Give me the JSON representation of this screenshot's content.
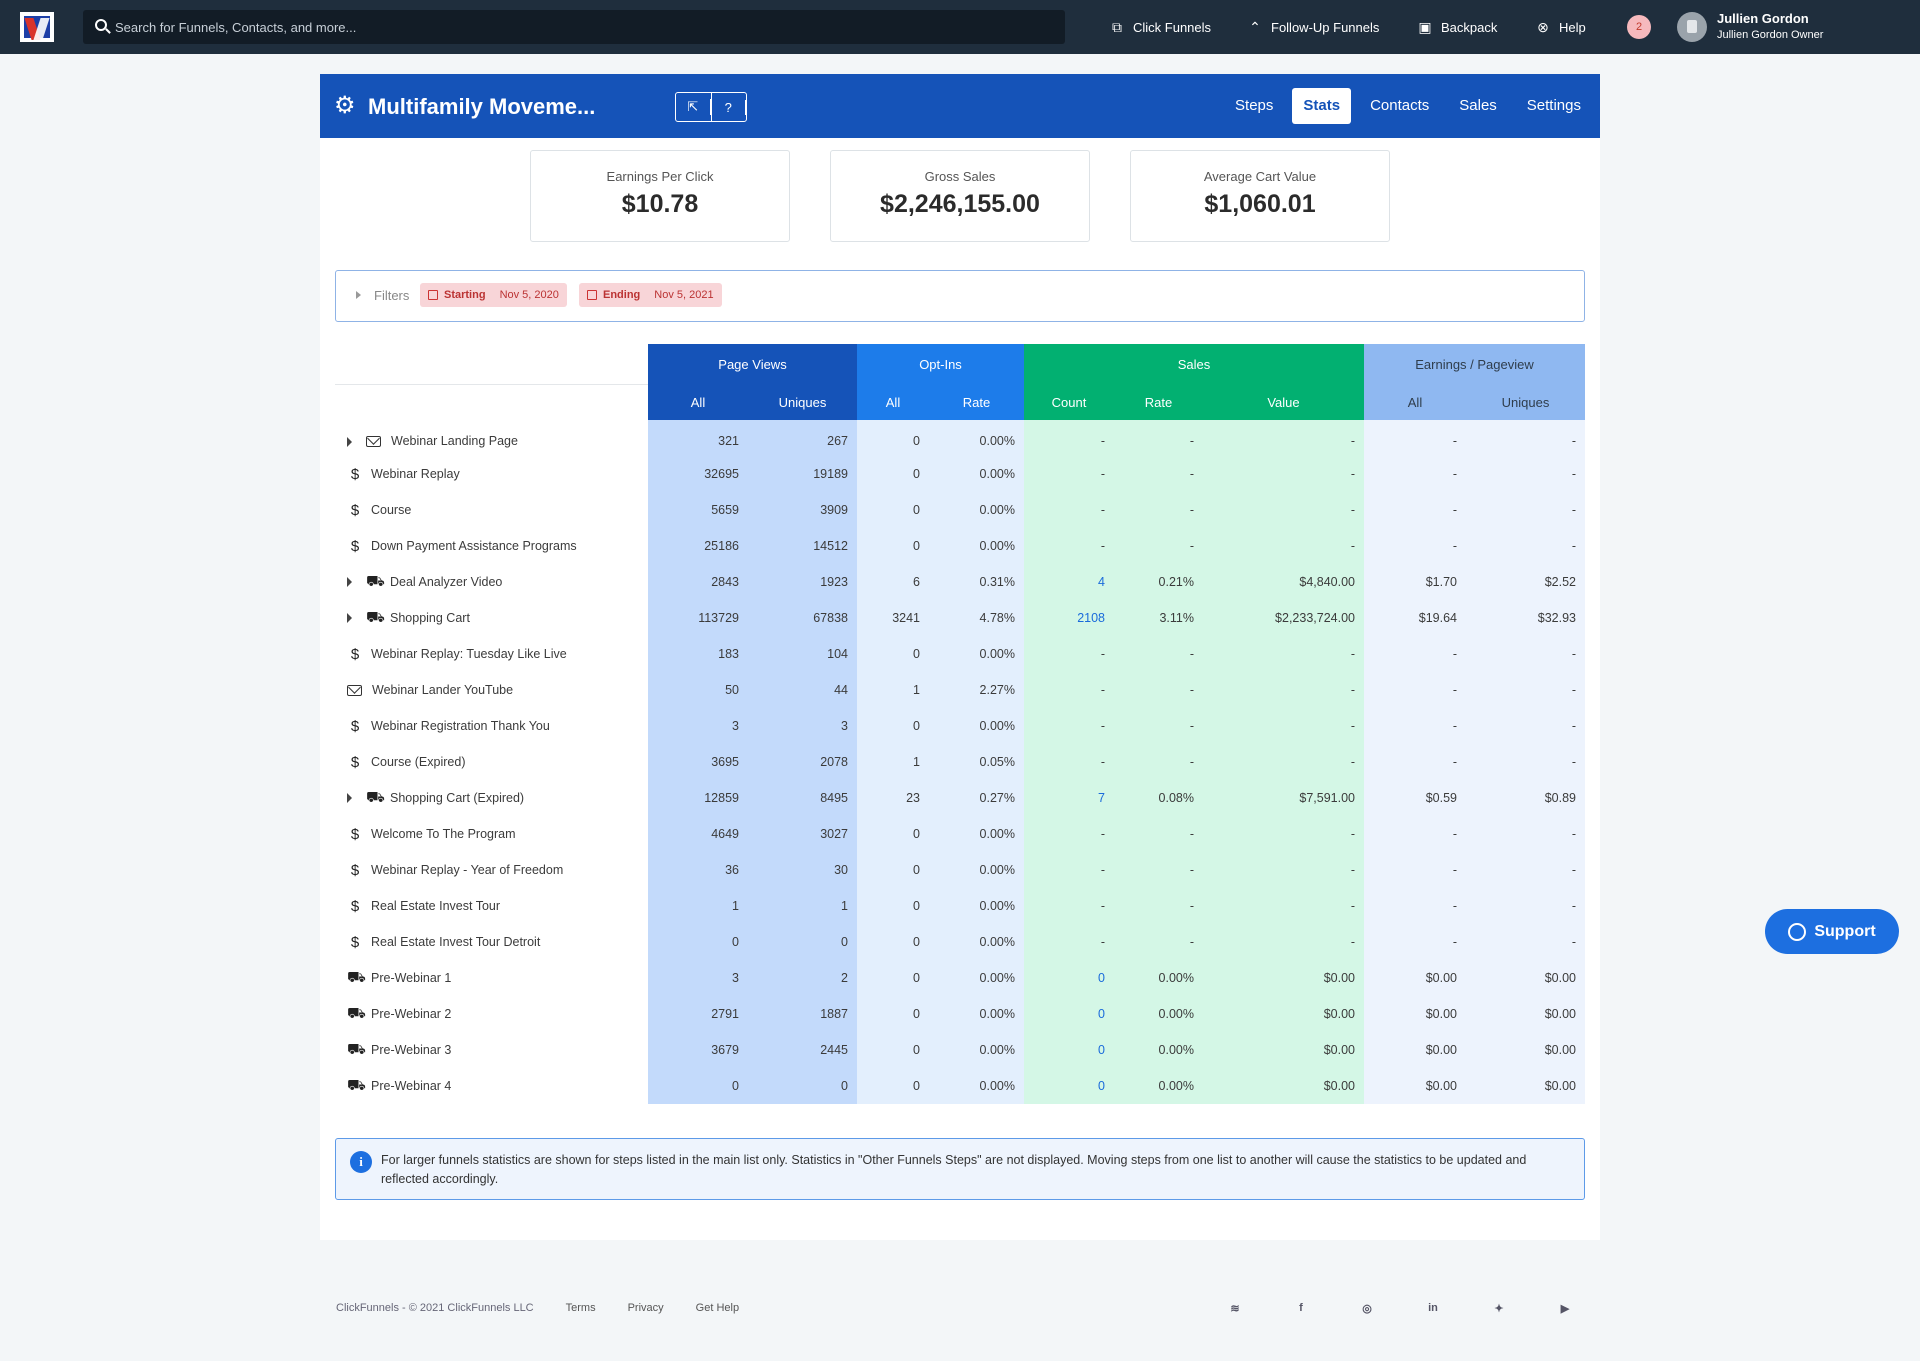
{
  "topbar": {
    "search_placeholder": "Search for Funnels, Contacts, and more...",
    "nav": [
      {
        "label": "Click Funnels",
        "icon": "clickfunnels-icon"
      },
      {
        "label": "Follow-Up Funnels",
        "icon": "double-chevron-up-icon"
      },
      {
        "label": "Backpack",
        "icon": "backpack-icon"
      },
      {
        "label": "Help",
        "icon": "help-icon"
      }
    ],
    "notifications": "2",
    "user_name": "Jullien Gordon",
    "user_role": "Jullien Gordon Owner"
  },
  "funnel": {
    "title": "Multifamily Moveme...",
    "tabs": [
      "Steps",
      "Stats",
      "Contacts",
      "Sales",
      "Settings"
    ],
    "active_tab": "Stats"
  },
  "metrics": [
    {
      "label": "Earnings Per Click",
      "value": "$10.78"
    },
    {
      "label": "Gross Sales",
      "value": "$2,246,155.00"
    },
    {
      "label": "Average Cart Value",
      "value": "$1,060.01"
    }
  ],
  "filters": {
    "label": "Filters",
    "starting_label": "Starting",
    "starting_date": "Nov 5, 2020",
    "ending_label": "Ending",
    "ending_date": "Nov 5, 2021"
  },
  "table": {
    "groups": [
      "Page Views",
      "Opt-Ins",
      "Sales",
      "Earnings / Pageview"
    ],
    "subheaders": [
      "All",
      "Uniques",
      "All",
      "Rate",
      "Count",
      "Rate",
      "Value",
      "All",
      "Uniques"
    ],
    "rows": [
      {
        "expand": true,
        "icon": "envelope",
        "name": "Webinar Landing Page",
        "pv_all": "321",
        "pv_uniq": "267",
        "oi_all": "0",
        "oi_rate": "0.00%",
        "s_count": "-",
        "s_rate": "-",
        "s_value": "-",
        "e_all": "-",
        "e_uniq": "-"
      },
      {
        "expand": false,
        "icon": "dollar",
        "name": "Webinar Replay",
        "pv_all": "32695",
        "pv_uniq": "19189",
        "oi_all": "0",
        "oi_rate": "0.00%",
        "s_count": "-",
        "s_rate": "-",
        "s_value": "-",
        "e_all": "-",
        "e_uniq": "-"
      },
      {
        "expand": false,
        "icon": "dollar",
        "name": "Course",
        "pv_all": "5659",
        "pv_uniq": "3909",
        "oi_all": "0",
        "oi_rate": "0.00%",
        "s_count": "-",
        "s_rate": "-",
        "s_value": "-",
        "e_all": "-",
        "e_uniq": "-"
      },
      {
        "expand": false,
        "icon": "dollar",
        "name": "Down Payment Assistance Programs",
        "pv_all": "25186",
        "pv_uniq": "14512",
        "oi_all": "0",
        "oi_rate": "0.00%",
        "s_count": "-",
        "s_rate": "-",
        "s_value": "-",
        "e_all": "-",
        "e_uniq": "-"
      },
      {
        "expand": true,
        "icon": "cart",
        "name": "Deal Analyzer Video",
        "pv_all": "2843",
        "pv_uniq": "1923",
        "oi_all": "6",
        "oi_rate": "0.31%",
        "s_count": "4",
        "s_rate": "0.21%",
        "s_value": "$4,840.00",
        "e_all": "$1.70",
        "e_uniq": "$2.52"
      },
      {
        "expand": true,
        "icon": "cart",
        "name": "Shopping Cart",
        "pv_all": "113729",
        "pv_uniq": "67838",
        "oi_all": "3241",
        "oi_rate": "4.78%",
        "s_count": "2108",
        "s_rate": "3.11%",
        "s_value": "$2,233,724.00",
        "e_all": "$19.64",
        "e_uniq": "$32.93"
      },
      {
        "expand": false,
        "icon": "dollar",
        "name": "Webinar Replay: Tuesday Like Live",
        "pv_all": "183",
        "pv_uniq": "104",
        "oi_all": "0",
        "oi_rate": "0.00%",
        "s_count": "-",
        "s_rate": "-",
        "s_value": "-",
        "e_all": "-",
        "e_uniq": "-"
      },
      {
        "expand": false,
        "icon": "envelope",
        "name": "Webinar Lander YouTube",
        "pv_all": "50",
        "pv_uniq": "44",
        "oi_all": "1",
        "oi_rate": "2.27%",
        "s_count": "-",
        "s_rate": "-",
        "s_value": "-",
        "e_all": "-",
        "e_uniq": "-"
      },
      {
        "expand": false,
        "icon": "dollar",
        "name": "Webinar Registration Thank You",
        "pv_all": "3",
        "pv_uniq": "3",
        "oi_all": "0",
        "oi_rate": "0.00%",
        "s_count": "-",
        "s_rate": "-",
        "s_value": "-",
        "e_all": "-",
        "e_uniq": "-"
      },
      {
        "expand": false,
        "icon": "dollar",
        "name": "Course (Expired)",
        "pv_all": "3695",
        "pv_uniq": "2078",
        "oi_all": "1",
        "oi_rate": "0.05%",
        "s_count": "-",
        "s_rate": "-",
        "s_value": "-",
        "e_all": "-",
        "e_uniq": "-"
      },
      {
        "expand": true,
        "icon": "cart",
        "name": "Shopping Cart (Expired)",
        "pv_all": "12859",
        "pv_uniq": "8495",
        "oi_all": "23",
        "oi_rate": "0.27%",
        "s_count": "7",
        "s_rate": "0.08%",
        "s_value": "$7,591.00",
        "e_all": "$0.59",
        "e_uniq": "$0.89"
      },
      {
        "expand": false,
        "icon": "dollar",
        "name": "Welcome To The Program",
        "pv_all": "4649",
        "pv_uniq": "3027",
        "oi_all": "0",
        "oi_rate": "0.00%",
        "s_count": "-",
        "s_rate": "-",
        "s_value": "-",
        "e_all": "-",
        "e_uniq": "-"
      },
      {
        "expand": false,
        "icon": "dollar",
        "name": "Webinar Replay - Year of Freedom",
        "pv_all": "36",
        "pv_uniq": "30",
        "oi_all": "0",
        "oi_rate": "0.00%",
        "s_count": "-",
        "s_rate": "-",
        "s_value": "-",
        "e_all": "-",
        "e_uniq": "-"
      },
      {
        "expand": false,
        "icon": "dollar",
        "name": "Real Estate Invest Tour",
        "pv_all": "1",
        "pv_uniq": "1",
        "oi_all": "0",
        "oi_rate": "0.00%",
        "s_count": "-",
        "s_rate": "-",
        "s_value": "-",
        "e_all": "-",
        "e_uniq": "-"
      },
      {
        "expand": false,
        "icon": "dollar",
        "name": "Real Estate Invest Tour Detroit",
        "pv_all": "0",
        "pv_uniq": "0",
        "oi_all": "0",
        "oi_rate": "0.00%",
        "s_count": "-",
        "s_rate": "-",
        "s_value": "-",
        "e_all": "-",
        "e_uniq": "-"
      },
      {
        "expand": false,
        "icon": "cart",
        "name": "Pre-Webinar 1",
        "pv_all": "3",
        "pv_uniq": "2",
        "oi_all": "0",
        "oi_rate": "0.00%",
        "s_count": "0",
        "s_rate": "0.00%",
        "s_value": "$0.00",
        "e_all": "$0.00",
        "e_uniq": "$0.00"
      },
      {
        "expand": false,
        "icon": "cart",
        "name": "Pre-Webinar 2",
        "pv_all": "2791",
        "pv_uniq": "1887",
        "oi_all": "0",
        "oi_rate": "0.00%",
        "s_count": "0",
        "s_rate": "0.00%",
        "s_value": "$0.00",
        "e_all": "$0.00",
        "e_uniq": "$0.00"
      },
      {
        "expand": false,
        "icon": "cart",
        "name": "Pre-Webinar 3",
        "pv_all": "3679",
        "pv_uniq": "2445",
        "oi_all": "0",
        "oi_rate": "0.00%",
        "s_count": "0",
        "s_rate": "0.00%",
        "s_value": "$0.00",
        "e_all": "$0.00",
        "e_uniq": "$0.00"
      },
      {
        "expand": false,
        "icon": "cart",
        "name": "Pre-Webinar 4",
        "pv_all": "0",
        "pv_uniq": "0",
        "oi_all": "0",
        "oi_rate": "0.00%",
        "s_count": "0",
        "s_rate": "0.00%",
        "s_value": "$0.00",
        "e_all": "$0.00",
        "e_uniq": "$0.00"
      }
    ]
  },
  "info_text": "For larger funnels statistics are shown for steps listed in the main list only. Statistics in \"Other Funnels Steps\" are not displayed. Moving steps from one list to another will cause the statistics to be updated and reflected accordingly.",
  "support_label": "Support",
  "footer": {
    "copyright": "ClickFunnels - © 2021 ClickFunnels LLC",
    "links": [
      "Terms",
      "Privacy",
      "Get Help"
    ],
    "social": [
      {
        "icon": "rss-icon",
        "glyph": "≋"
      },
      {
        "icon": "facebook-icon",
        "glyph": "f"
      },
      {
        "icon": "instagram-icon",
        "glyph": "◎"
      },
      {
        "icon": "linkedin-icon",
        "glyph": "in"
      },
      {
        "icon": "twitter-icon",
        "glyph": "✦"
      },
      {
        "icon": "youtube-icon",
        "glyph": "▶"
      }
    ]
  }
}
